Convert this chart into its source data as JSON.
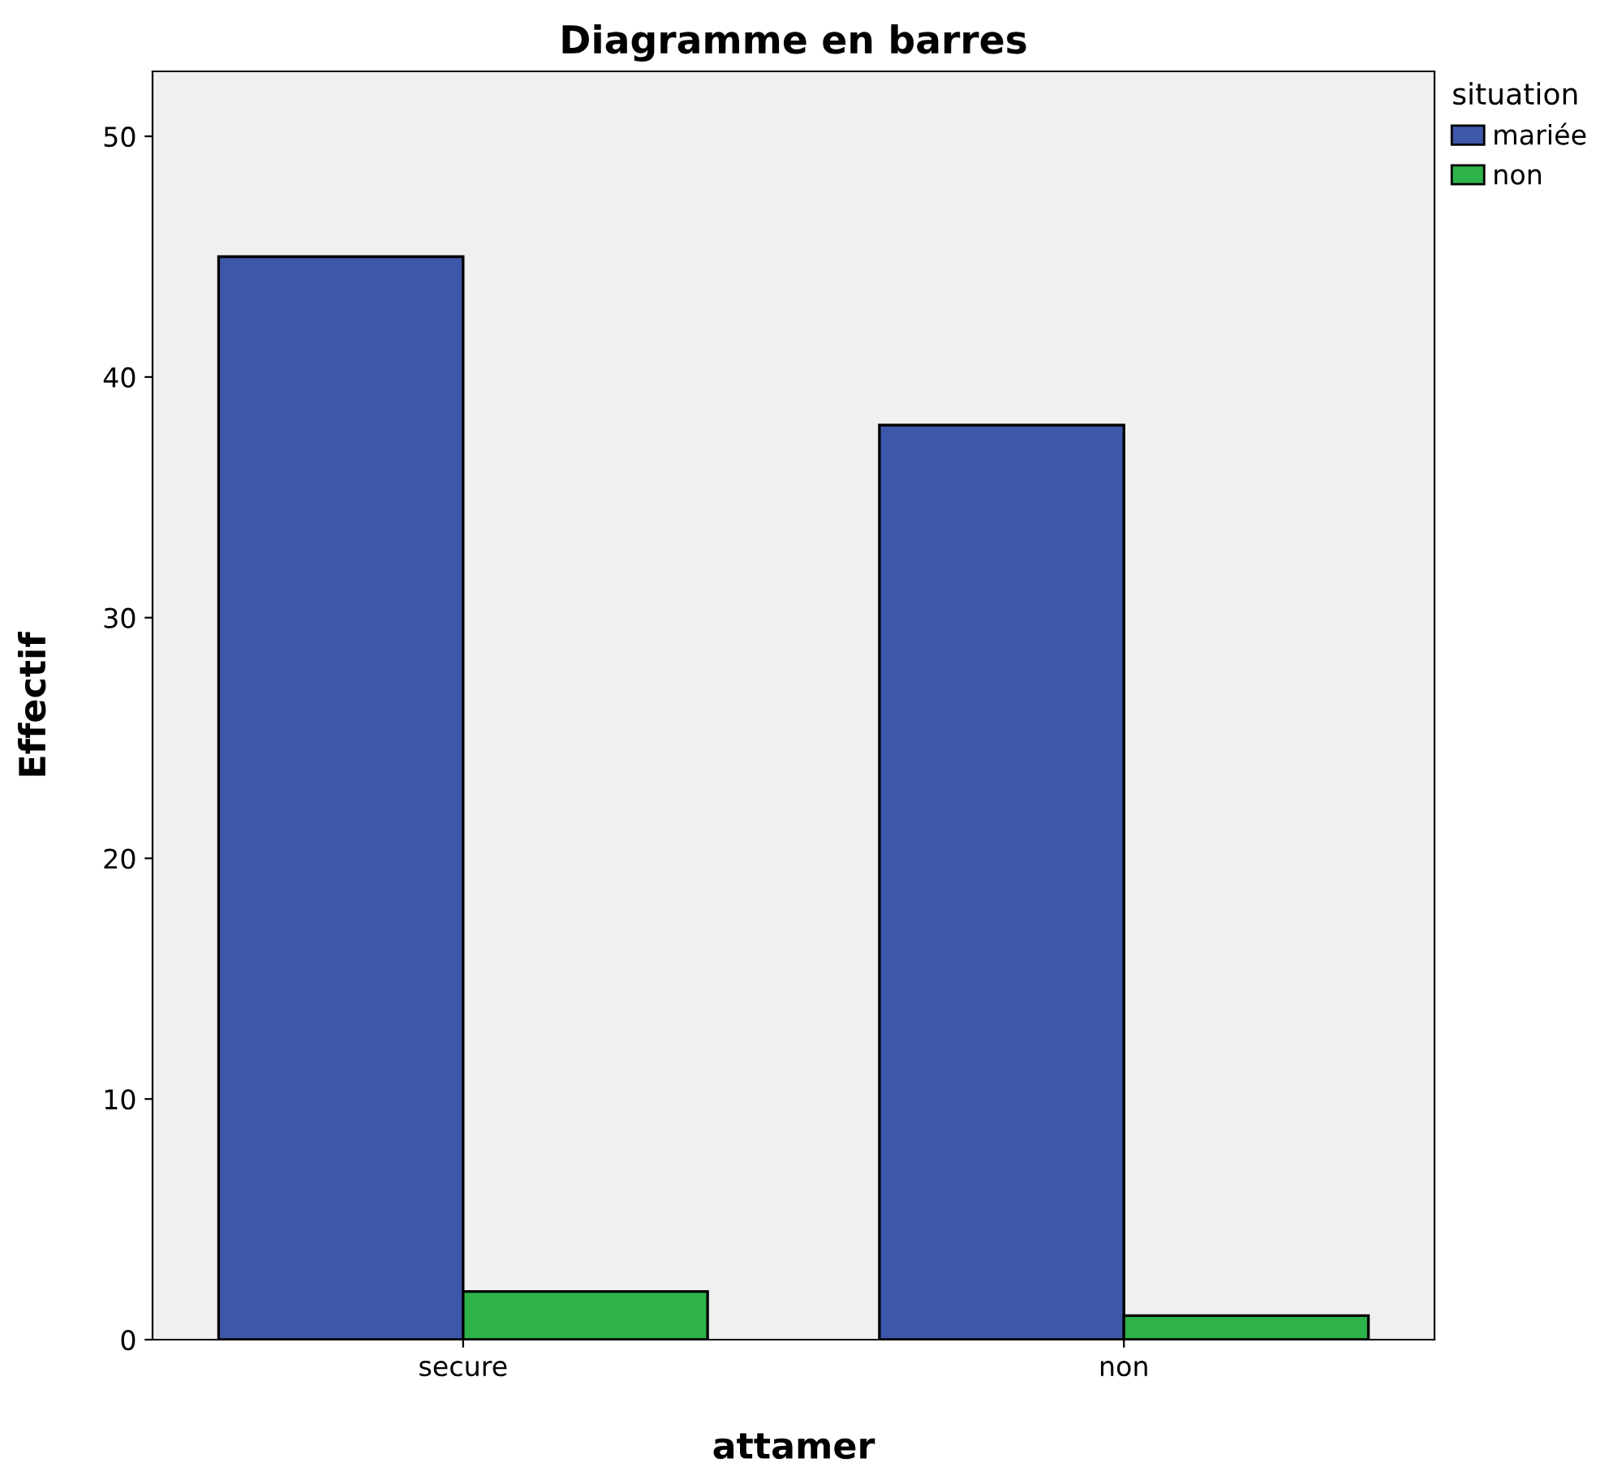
{
  "chart_data": {
    "type": "bar",
    "title": "Diagramme en barres",
    "xlabel": "attamer",
    "ylabel": "Effectif",
    "legend_title": "situation",
    "categories": [
      "secure",
      "non"
    ],
    "series": [
      {
        "name": "mariée",
        "color": "#3d57aa",
        "values": [
          45,
          38
        ]
      },
      {
        "name": "non",
        "color": "#2db34a",
        "values": [
          2,
          1
        ]
      }
    ],
    "ylim": [
      0,
      52.7
    ],
    "yticks": [
      0,
      10,
      20,
      30,
      40,
      50
    ],
    "grid": false,
    "legend": "top right"
  }
}
